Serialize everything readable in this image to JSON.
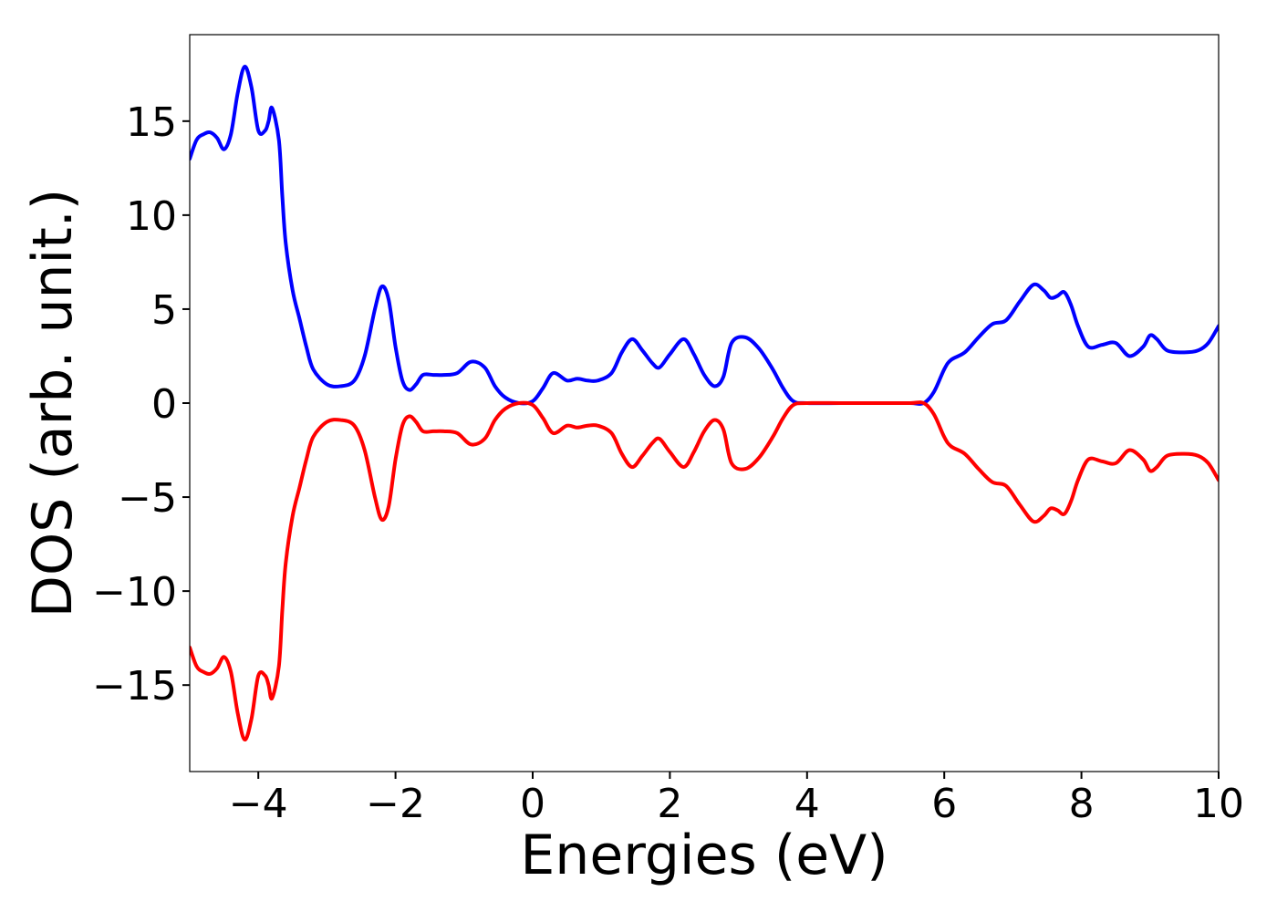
{
  "chart_data": {
    "type": "line",
    "title": "",
    "xlabel": "Energies (eV)",
    "ylabel": "DOS (arb. unit.)",
    "xlim": [
      -5,
      10
    ],
    "ylim": [
      -19.6,
      19.6
    ],
    "x_ticks": [
      -4,
      -2,
      0,
      2,
      4,
      6,
      8,
      10
    ],
    "x_tick_labels": [
      "−4",
      "−2",
      "0",
      "2",
      "4",
      "6",
      "8",
      "10"
    ],
    "y_ticks": [
      -15,
      -10,
      -5,
      0,
      5,
      10,
      15
    ],
    "y_tick_labels": [
      "−15",
      "−10",
      "−5",
      "0",
      "5",
      "10",
      "15"
    ],
    "grid": false,
    "legend": false,
    "series": [
      {
        "color": "#0000ff",
        "x": [
          -5.0,
          -4.9,
          -4.8,
          -4.7,
          -4.6,
          -4.5,
          -4.4,
          -4.3,
          -4.2,
          -4.1,
          -4.0,
          -3.9,
          -3.85,
          -3.8,
          -3.7,
          -3.65,
          -3.6,
          -3.5,
          -3.4,
          -3.3,
          -3.2,
          -3.0,
          -2.8,
          -2.6,
          -2.45,
          -2.3,
          -2.2,
          -2.1,
          -2.0,
          -1.9,
          -1.8,
          -1.7,
          -1.6,
          -1.45,
          -1.3,
          -1.1,
          -0.9,
          -0.7,
          -0.55,
          -0.4,
          -0.2,
          0.0,
          0.15,
          0.3,
          0.5,
          0.65,
          0.8,
          0.95,
          1.15,
          1.3,
          1.45,
          1.6,
          1.75,
          1.85,
          2.0,
          2.2,
          2.35,
          2.5,
          2.65,
          2.78,
          2.9,
          3.1,
          3.3,
          3.5,
          3.65,
          3.8,
          4.0,
          4.5,
          5.0,
          5.5,
          5.7,
          5.85,
          6.0,
          6.1,
          6.3,
          6.5,
          6.7,
          6.9,
          7.1,
          7.3,
          7.45,
          7.55,
          7.65,
          7.75,
          7.85,
          7.95,
          8.1,
          8.3,
          8.5,
          8.7,
          8.9,
          9.0,
          9.1,
          9.25,
          9.5,
          9.7,
          9.85,
          10.0
        ],
        "y": [
          13.0,
          14.0,
          14.3,
          14.4,
          14.1,
          13.5,
          14.3,
          16.5,
          17.9,
          16.8,
          14.5,
          14.5,
          15.0,
          15.7,
          14.0,
          11.0,
          8.5,
          6.0,
          4.5,
          3.0,
          1.8,
          1.0,
          0.9,
          1.2,
          2.5,
          5.0,
          6.2,
          5.5,
          3.0,
          1.2,
          0.7,
          1.0,
          1.5,
          1.5,
          1.5,
          1.6,
          2.2,
          1.9,
          0.9,
          0.3,
          0.0,
          0.1,
          0.8,
          1.6,
          1.2,
          1.3,
          1.2,
          1.2,
          1.6,
          2.7,
          3.4,
          2.8,
          2.1,
          1.9,
          2.6,
          3.4,
          2.6,
          1.5,
          0.9,
          1.4,
          3.2,
          3.5,
          2.9,
          1.8,
          0.8,
          0.1,
          0.0,
          0.0,
          0.0,
          0.0,
          0.0,
          0.6,
          1.8,
          2.3,
          2.7,
          3.5,
          4.2,
          4.4,
          5.4,
          6.3,
          6.0,
          5.6,
          5.7,
          5.9,
          5.2,
          4.1,
          3.0,
          3.1,
          3.2,
          2.5,
          3.0,
          3.6,
          3.4,
          2.8,
          2.7,
          2.8,
          3.2,
          4.1
        ]
      },
      {
        "color": "#ff0000",
        "x": [
          -5.0,
          -4.9,
          -4.8,
          -4.7,
          -4.6,
          -4.5,
          -4.4,
          -4.3,
          -4.2,
          -4.1,
          -4.0,
          -3.9,
          -3.85,
          -3.8,
          -3.7,
          -3.65,
          -3.6,
          -3.5,
          -3.4,
          -3.3,
          -3.2,
          -3.0,
          -2.8,
          -2.6,
          -2.45,
          -2.3,
          -2.2,
          -2.1,
          -2.0,
          -1.9,
          -1.8,
          -1.7,
          -1.6,
          -1.45,
          -1.3,
          -1.1,
          -0.9,
          -0.7,
          -0.55,
          -0.4,
          -0.2,
          0.0,
          0.15,
          0.3,
          0.5,
          0.65,
          0.8,
          0.95,
          1.15,
          1.3,
          1.45,
          1.6,
          1.75,
          1.85,
          2.0,
          2.2,
          2.35,
          2.5,
          2.65,
          2.78,
          2.9,
          3.1,
          3.3,
          3.5,
          3.65,
          3.8,
          4.0,
          4.5,
          5.0,
          5.5,
          5.7,
          5.85,
          6.0,
          6.1,
          6.3,
          6.5,
          6.7,
          6.9,
          7.1,
          7.3,
          7.45,
          7.55,
          7.65,
          7.75,
          7.85,
          7.95,
          8.1,
          8.3,
          8.5,
          8.7,
          8.9,
          9.0,
          9.1,
          9.25,
          9.5,
          9.7,
          9.85,
          10.0
        ],
        "y": [
          -13.0,
          -14.0,
          -14.3,
          -14.4,
          -14.1,
          -13.5,
          -14.3,
          -16.5,
          -17.9,
          -16.8,
          -14.5,
          -14.5,
          -15.0,
          -15.7,
          -14.0,
          -11.0,
          -8.5,
          -6.0,
          -4.5,
          -3.0,
          -1.8,
          -1.0,
          -0.9,
          -1.2,
          -2.5,
          -5.0,
          -6.2,
          -5.5,
          -3.0,
          -1.2,
          -0.7,
          -1.0,
          -1.5,
          -1.5,
          -1.5,
          -1.6,
          -2.2,
          -1.9,
          -0.9,
          -0.3,
          -0.0,
          -0.1,
          -0.8,
          -1.6,
          -1.2,
          -1.3,
          -1.2,
          -1.2,
          -1.6,
          -2.7,
          -3.4,
          -2.8,
          -2.1,
          -1.9,
          -2.6,
          -3.4,
          -2.6,
          -1.5,
          -0.9,
          -1.4,
          -3.2,
          -3.5,
          -2.9,
          -1.8,
          -0.8,
          -0.1,
          0.0,
          0.0,
          0.0,
          0.0,
          0.0,
          -0.6,
          -1.8,
          -2.3,
          -2.7,
          -3.5,
          -4.2,
          -4.4,
          -5.4,
          -6.3,
          -6.0,
          -5.6,
          -5.7,
          -5.9,
          -5.2,
          -4.1,
          -3.0,
          -3.1,
          -3.2,
          -2.5,
          -3.0,
          -3.6,
          -3.4,
          -2.8,
          -2.7,
          -2.8,
          -3.2,
          -4.1
        ]
      }
    ]
  }
}
